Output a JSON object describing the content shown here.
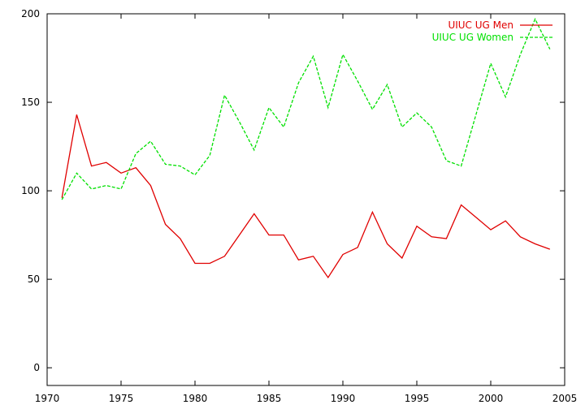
{
  "chart_data": {
    "type": "line",
    "title": "",
    "xlabel": "",
    "ylabel": "",
    "xlim": [
      1970,
      2005
    ],
    "ylim": [
      -10,
      200
    ],
    "xticks": [
      1970,
      1975,
      1980,
      1985,
      1990,
      1995,
      2000,
      2005
    ],
    "yticks": [
      0,
      50,
      100,
      150,
      200
    ],
    "grid": false,
    "legend": "top-right",
    "x": [
      1971,
      1972,
      1973,
      1974,
      1975,
      1976,
      1977,
      1978,
      1979,
      1980,
      1981,
      1982,
      1983,
      1984,
      1985,
      1986,
      1987,
      1988,
      1989,
      1990,
      1991,
      1992,
      1993,
      1994,
      1995,
      1996,
      1997,
      1998,
      1999,
      2000,
      2001,
      2002,
      2003,
      2004
    ],
    "series": [
      {
        "name": "UIUC UG Men",
        "color": "#e00000",
        "style": "solid",
        "values": [
          96,
          143,
          114,
          116,
          110,
          113,
          103,
          81,
          73,
          59,
          59,
          63,
          75,
          87,
          75,
          75,
          61,
          63,
          51,
          64,
          68,
          88,
          70,
          62,
          80,
          74,
          73,
          92,
          85,
          78,
          83,
          74,
          70,
          67
        ]
      },
      {
        "name": "UIUC UG Women",
        "color": "#00e000",
        "style": "dashed",
        "values": [
          95,
          110,
          101,
          103,
          101,
          121,
          128,
          115,
          114,
          109,
          120,
          154,
          139,
          123,
          147,
          136,
          161,
          176,
          147,
          177,
          162,
          146,
          160,
          136,
          144,
          136,
          117,
          114,
          143,
          172,
          153,
          177,
          197,
          180
        ]
      }
    ]
  }
}
